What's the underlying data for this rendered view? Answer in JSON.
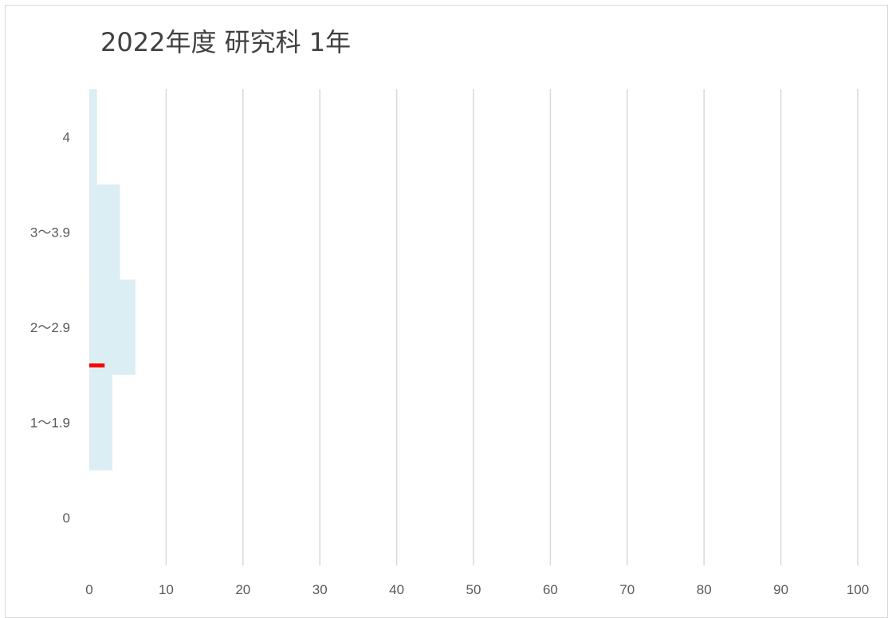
{
  "chart_data": {
    "type": "bar",
    "orientation": "horizontal",
    "title": "2022年度  研究科  1年",
    "categories": [
      "0",
      "1〜1.9",
      "2〜2.9",
      "3〜3.9",
      "4"
    ],
    "series": [
      {
        "values": [
          0,
          3,
          6,
          4,
          1
        ],
        "color": "#daeef3"
      }
    ],
    "marker": {
      "category_position": 1.6,
      "x_range": [
        0,
        2
      ],
      "color": "#ff0000"
    },
    "xlim": [
      0,
      100
    ],
    "xticks": [
      0,
      10,
      20,
      30,
      40,
      50,
      60,
      70,
      80,
      90,
      100
    ],
    "grid": "vertical",
    "gridline_color": "#d9d9d9"
  }
}
